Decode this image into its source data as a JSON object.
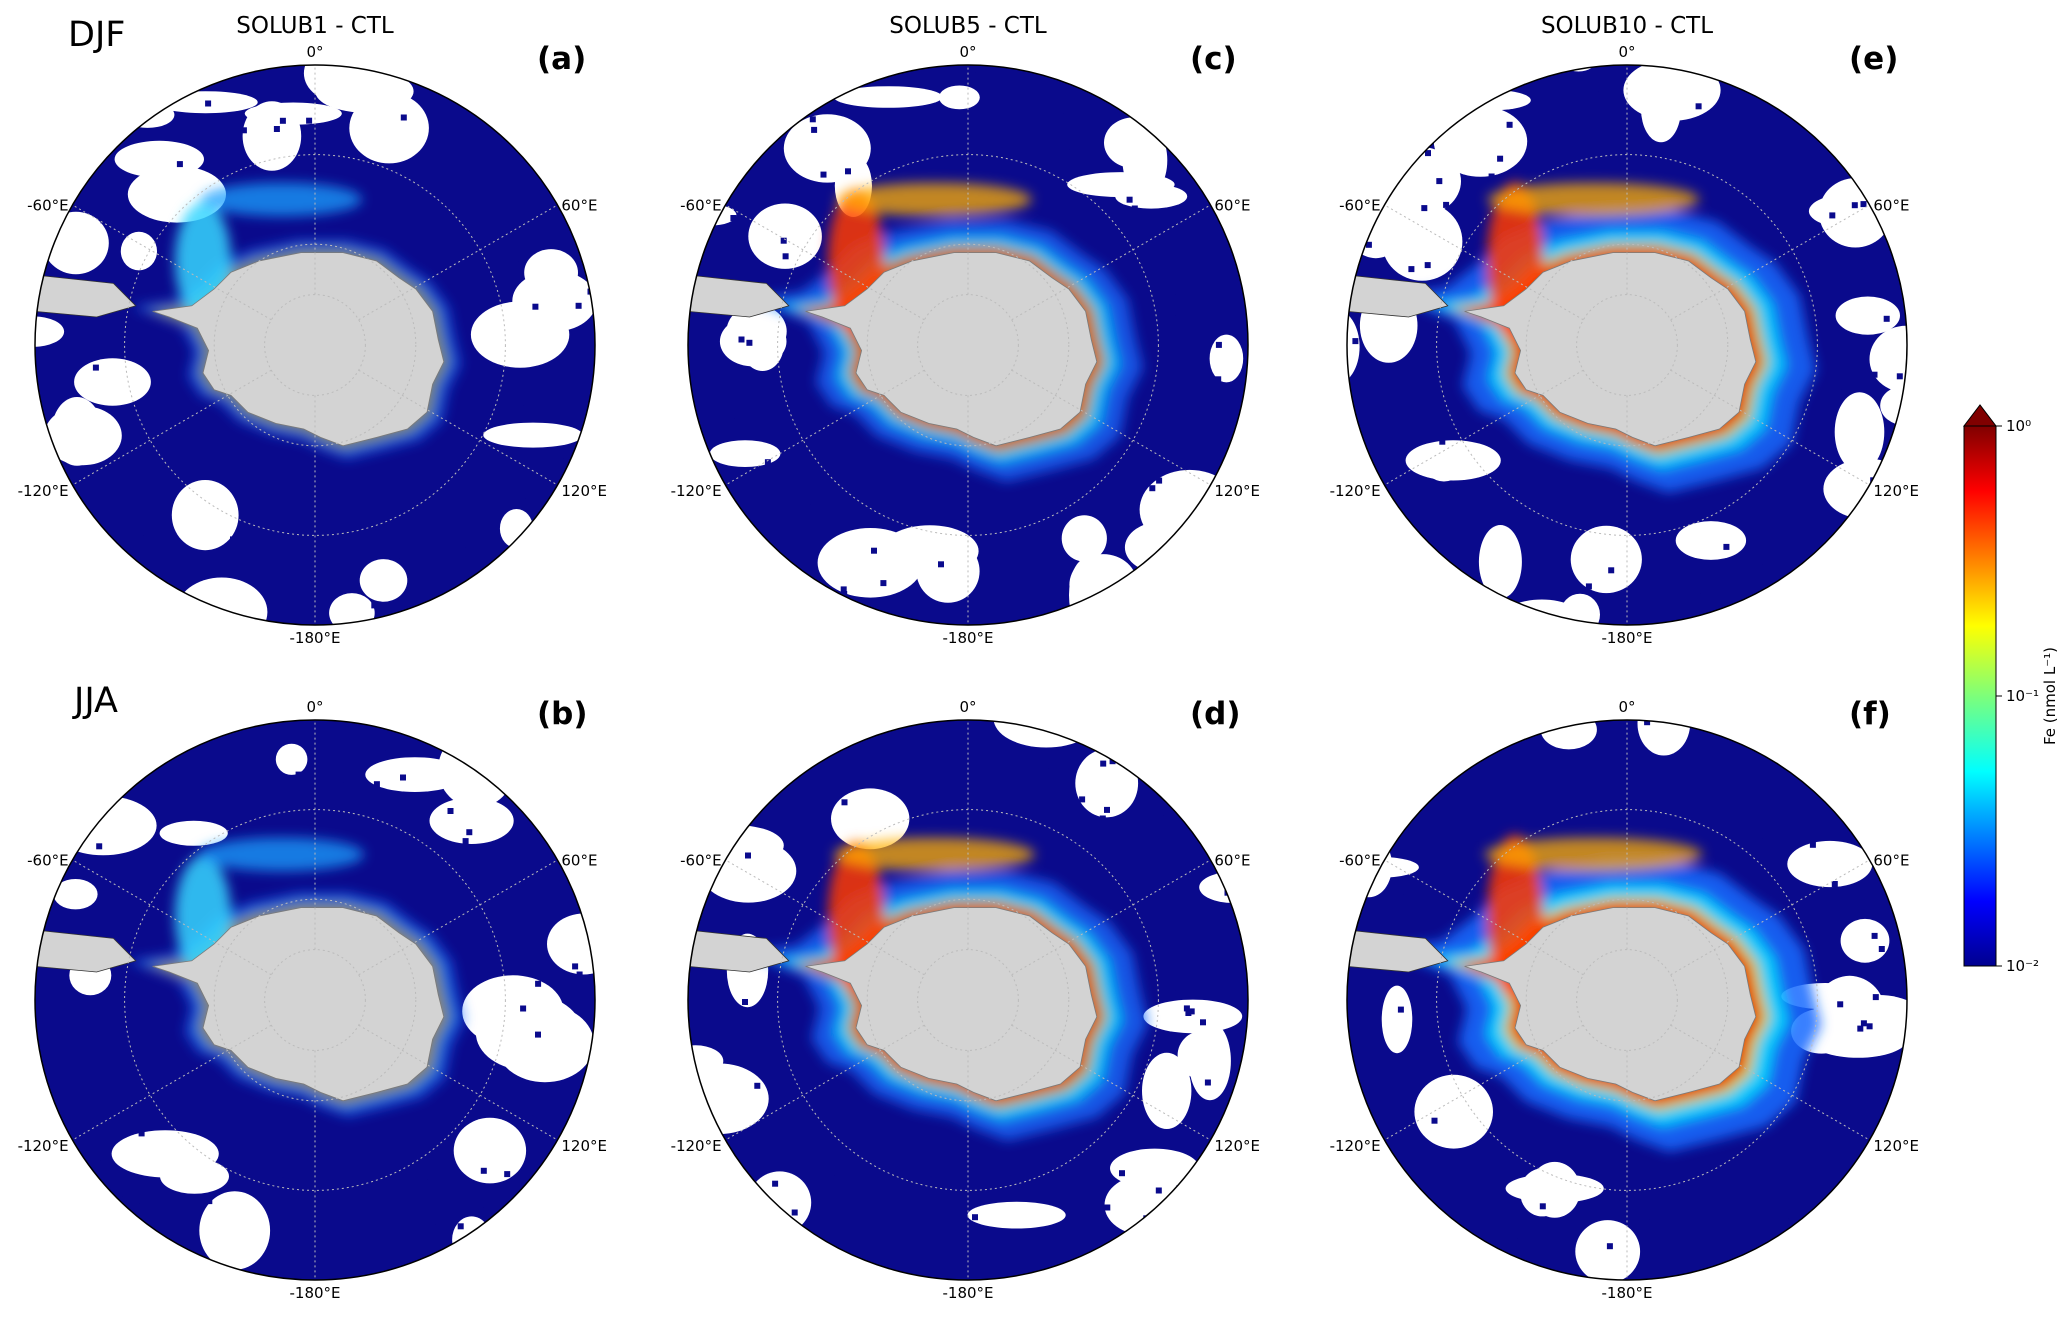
{
  "figure": {
    "seasons": [
      "DJF",
      "JJA"
    ],
    "columns": [
      "SOLUB1 - CTL",
      "SOLUB5 - CTL",
      "SOLUB10 - CTL"
    ],
    "panels": [
      {
        "label": "(a)",
        "season": "DJF",
        "experiment": "SOLUB1 - CTL",
        "intensity": 0.25
      },
      {
        "label": "(b)",
        "season": "JJA",
        "experiment": "SOLUB1 - CTL",
        "intensity": 0.3
      },
      {
        "label": "(c)",
        "season": "DJF",
        "experiment": "SOLUB5 - CTL",
        "intensity": 0.65
      },
      {
        "label": "(d)",
        "season": "JJA",
        "experiment": "SOLUB5 - CTL",
        "intensity": 0.72
      },
      {
        "label": "(e)",
        "season": "DJF",
        "experiment": "SOLUB10 - CTL",
        "intensity": 0.85
      },
      {
        "label": "(f)",
        "season": "JJA",
        "experiment": "SOLUB10 - CTL",
        "intensity": 0.92
      }
    ],
    "longitude_labels": {
      "top": "0°",
      "upper_left": "-60°E",
      "upper_right": "60°E",
      "lower_left": "-120°E",
      "lower_right": "120°E",
      "bottom": "-180°E"
    }
  },
  "colorbar": {
    "label": "Fe (nmol L⁻¹)",
    "scale": "log",
    "min": 0.01,
    "max": 1,
    "ticks": [
      "10⁻²",
      "10⁻¹",
      "10⁰"
    ],
    "extend": "max",
    "colormap": "jet"
  },
  "colors": {
    "ocean_low": "#0a0a8c",
    "land": "#d3d3d3",
    "missing": "#ffffff"
  }
}
